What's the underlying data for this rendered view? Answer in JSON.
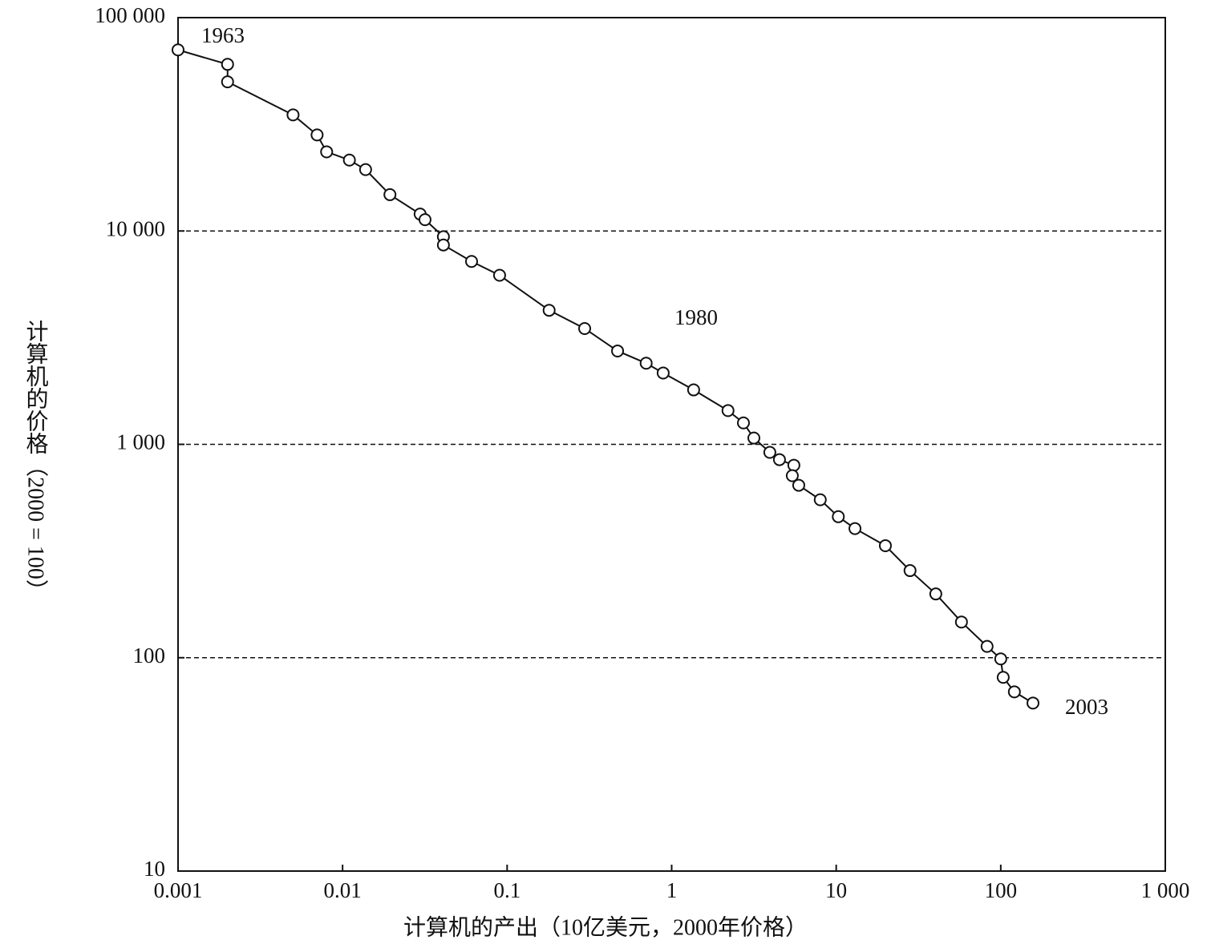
{
  "chart_data": {
    "type": "line",
    "x_label": "计算机的产出（10亿美元，2000年价格）",
    "y_label": "计算机的价格（2000 = 100）",
    "annotations": [
      "1963",
      "1980",
      "2003"
    ],
    "x": [
      0.001,
      0.002,
      0.002,
      0.005,
      0.007,
      0.008,
      0.011,
      0.0138,
      0.0194,
      0.0296,
      0.0317,
      0.041,
      0.041,
      0.0608,
      0.09,
      0.18,
      0.296,
      0.469,
      0.7,
      0.888,
      1.36,
      2.2,
      2.73,
      3.16,
      3.95,
      4.52,
      5.53,
      5.41,
      5.92,
      8.0,
      10.3,
      13.0,
      19.9,
      28.1,
      40.3,
      57.7,
      82.6,
      100,
      103.5,
      121,
      157
    ],
    "series": [
      {
        "color": "#111111",
        "values": [
          70600,
          60400,
          50000,
          35000,
          28200,
          23500,
          21500,
          19400,
          14800,
          12000,
          11300,
          9400,
          8600,
          7200,
          6200,
          4250,
          3490,
          2740,
          2400,
          2160,
          1800,
          1440,
          1260,
          1070,
          917,
          848,
          798,
          713,
          643,
          550,
          458,
          403,
          335,
          256,
          199,
          147,
          113,
          98.7,
          80.9,
          69.2,
          61.3
        ]
      }
    ],
    "xlim": [
      0.001,
      1000
    ],
    "ylim": [
      10,
      100000
    ],
    "xticks": [
      0.001,
      0.01,
      0.1,
      1,
      10,
      100,
      {
        "value": 1000,
        "label": "1 000"
      }
    ],
    "yticks": [
      10,
      100,
      {
        "value": 1000,
        "label": "1 000"
      },
      {
        "value": 10000,
        "label": "10 000"
      },
      {
        "value": 100000,
        "label": "100 000"
      }
    ],
    "xscale": "log",
    "yscale": "log",
    "grid": true
  }
}
